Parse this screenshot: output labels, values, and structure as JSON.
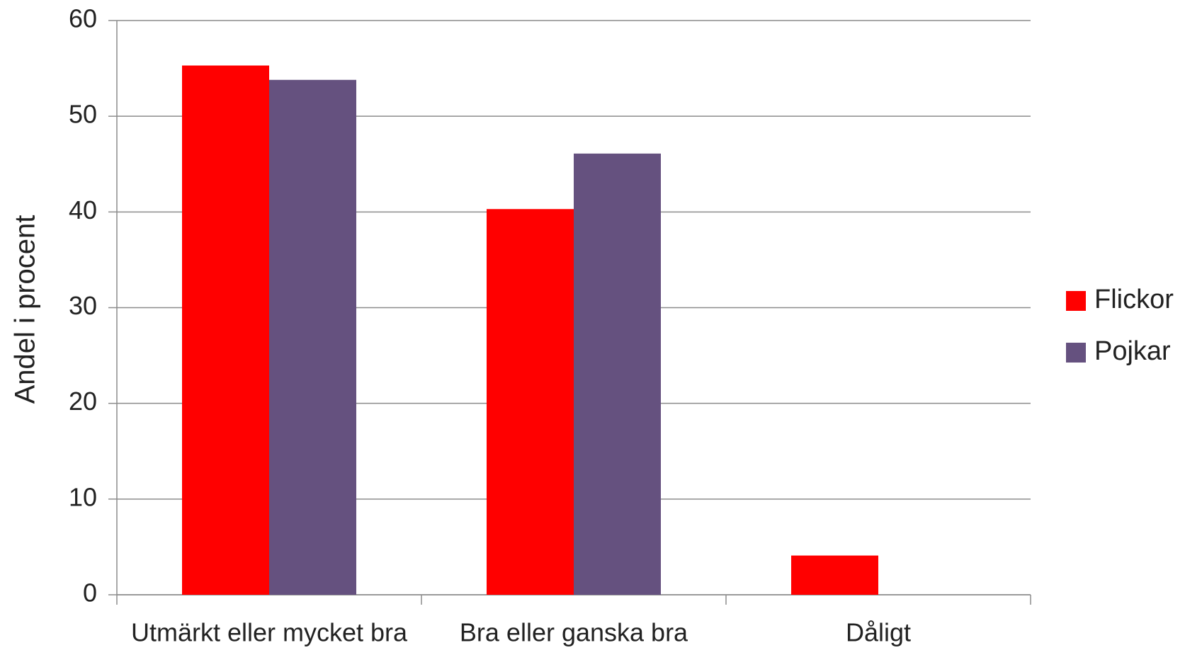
{
  "chart_data": {
    "type": "bar",
    "y_label": "Andel i procent",
    "categories": [
      "Utmärkt eller mycket bra",
      "Bra eller ganska bra",
      "Dåligt"
    ],
    "series": [
      {
        "name": "Flickor",
        "color": "#ff0000",
        "values": [
          55.3,
          40.3,
          4.1
        ]
      },
      {
        "name": "Pojkar",
        "color": "#65517f",
        "values": [
          53.8,
          46.1,
          0
        ]
      }
    ],
    "ylim": [
      0,
      60
    ],
    "yticks": [
      0,
      10,
      20,
      30,
      40,
      50,
      60
    ],
    "grid": true,
    "legend": "right"
  }
}
